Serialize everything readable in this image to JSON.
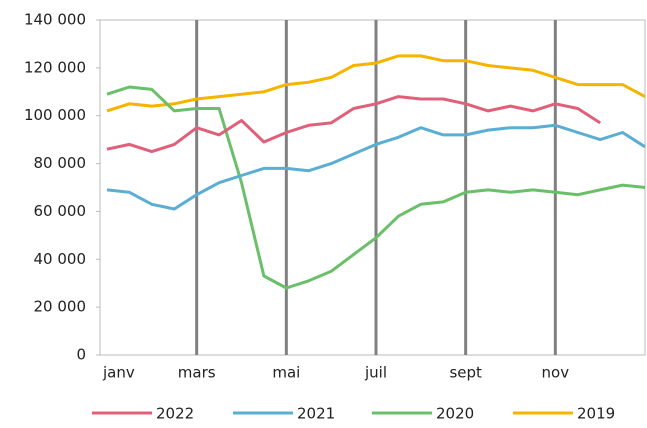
{
  "chart_data": {
    "type": "line",
    "categories": [
      "janv",
      null,
      null,
      null,
      "mars",
      null,
      null,
      null,
      "mai",
      null,
      null,
      null,
      "juil",
      null,
      null,
      null,
      "sept",
      null,
      null,
      null,
      "nov",
      null,
      null,
      null,
      null
    ],
    "series": [
      {
        "name": "2022",
        "color": "#e0607a",
        "values": [
          86000,
          88000,
          85000,
          88000,
          95000,
          92000,
          98000,
          89000,
          93000,
          96000,
          97000,
          103000,
          105000,
          108000,
          107000,
          107000,
          105000,
          102000,
          104000,
          102000,
          105000,
          103000,
          97000,
          null,
          null
        ]
      },
      {
        "name": "2021",
        "color": "#5aaed3",
        "values": [
          69000,
          68000,
          63000,
          61000,
          67000,
          72000,
          75000,
          78000,
          78000,
          77000,
          80000,
          84000,
          88000,
          91000,
          95000,
          92000,
          92000,
          94000,
          95000,
          95000,
          96000,
          93000,
          90000,
          93000,
          87000
        ]
      },
      {
        "name": "2020",
        "color": "#6abf69",
        "values": [
          109000,
          112000,
          111000,
          102000,
          103000,
          103000,
          72000,
          33000,
          28000,
          31000,
          35000,
          42000,
          49000,
          58000,
          63000,
          64000,
          68000,
          69000,
          68000,
          69000,
          68000,
          67000,
          69000,
          71000,
          70000
        ]
      },
      {
        "name": "2019",
        "color": "#f5b400",
        "values": [
          102000,
          105000,
          104000,
          105000,
          107000,
          108000,
          109000,
          110000,
          113000,
          114000,
          116000,
          121000,
          122000,
          125000,
          125000,
          123000,
          123000,
          121000,
          120000,
          119000,
          116000,
          113000,
          113000,
          113000,
          108000
        ]
      }
    ],
    "ylim": [
      0,
      140000
    ],
    "yticks": [
      0,
      {
        "value": 20000,
        "label": "20 000"
      },
      {
        "value": 40000,
        "label": "40 000"
      },
      {
        "value": 60000,
        "label": "60 000"
      },
      {
        "value": 80000,
        "label": "80 000"
      },
      {
        "value": 100000,
        "label": "100 000"
      },
      {
        "value": 120000,
        "label": "120 000"
      },
      {
        "value": 140000,
        "label": "140 000"
      }
    ],
    "xgrid": true,
    "legend": "bottom"
  }
}
